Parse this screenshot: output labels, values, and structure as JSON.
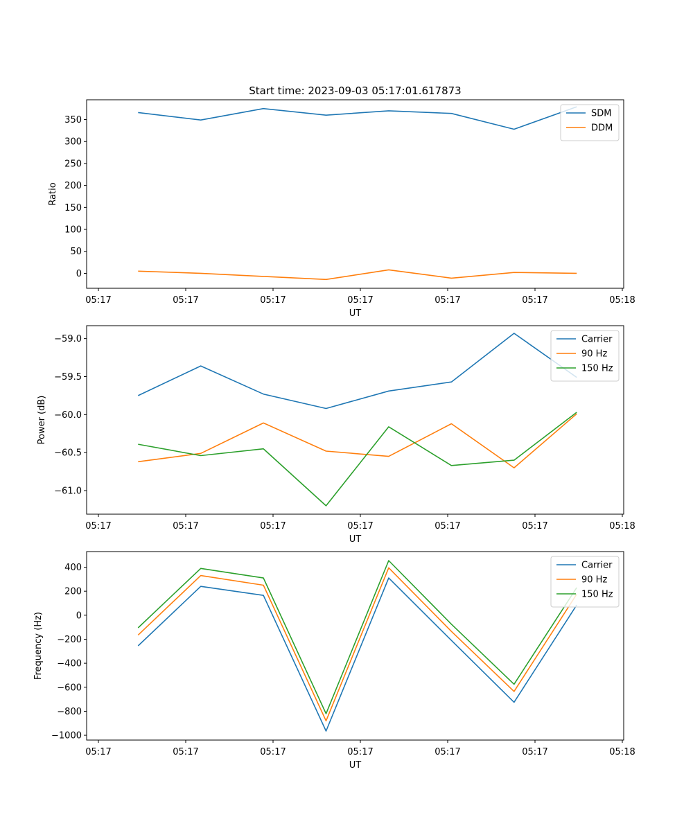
{
  "figure": {
    "title": "Start time: 2023-09-03 05:17:01.617873"
  },
  "colors": {
    "blue": "#1f77b4",
    "orange": "#ff7f0e",
    "green": "#2ca02c"
  },
  "chart_data": [
    {
      "type": "line",
      "title": "Start time: 2023-09-03 05:17:01.617873",
      "xlabel": "UT",
      "ylabel": "Ratio",
      "x_tick_labels": [
        "05:17",
        "05:17",
        "05:17",
        "05:17",
        "05:17",
        "05:17",
        "05:18"
      ],
      "xlim": [
        -0.12,
        4.68
      ],
      "ylim": [
        -34,
        395
      ],
      "y_ticks": [
        0,
        50,
        100,
        150,
        200,
        250,
        300,
        350
      ],
      "legend_position": "top-right",
      "x": [
        0.34,
        0.9,
        1.46,
        2.02,
        2.58,
        3.14,
        3.7,
        4.26
      ],
      "series": [
        {
          "name": "SDM",
          "color": "blue",
          "values": [
            366,
            349,
            375,
            360,
            370,
            364,
            328,
            379
          ]
        },
        {
          "name": "DDM",
          "color": "orange",
          "values": [
            5,
            0,
            -7,
            -14,
            8,
            -11,
            2,
            0
          ]
        }
      ]
    },
    {
      "type": "line",
      "title": "",
      "xlabel": "UT",
      "ylabel": "Power (dB)",
      "x_tick_labels": [
        "05:17",
        "05:17",
        "05:17",
        "05:17",
        "05:17",
        "05:17",
        "05:18"
      ],
      "xlim": [
        -0.12,
        4.68
      ],
      "ylim": [
        -61.31,
        -58.83
      ],
      "y_ticks": [
        -61.0,
        -60.5,
        -60.0,
        -59.5,
        -59.0
      ],
      "y_tick_labels": [
        "−61.0",
        "−60.5",
        "−60.0",
        "−59.5",
        "−59.0"
      ],
      "legend_position": "top-right",
      "x": [
        0.34,
        0.9,
        1.46,
        2.02,
        2.58,
        3.14,
        3.7,
        4.26
      ],
      "series": [
        {
          "name": "Carrier",
          "color": "blue",
          "values": [
            -59.75,
            -59.36,
            -59.73,
            -59.92,
            -59.69,
            -59.57,
            -58.93,
            -59.51
          ]
        },
        {
          "name": "90 Hz",
          "color": "orange",
          "values": [
            -60.62,
            -60.51,
            -60.11,
            -60.48,
            -60.55,
            -60.12,
            -60.7,
            -59.99
          ]
        },
        {
          "name": "150 Hz",
          "color": "green",
          "values": [
            -60.39,
            -60.54,
            -60.45,
            -61.2,
            -60.16,
            -60.67,
            -60.6,
            -59.97
          ]
        }
      ]
    },
    {
      "type": "line",
      "title": "",
      "xlabel": "UT",
      "ylabel": "Frequency (Hz)",
      "x_tick_labels": [
        "05:17",
        "05:17",
        "05:17",
        "05:17",
        "05:17",
        "05:17",
        "05:18"
      ],
      "xlim": [
        -0.12,
        4.68
      ],
      "ylim": [
        -1040,
        530
      ],
      "y_ticks": [
        -1000,
        -800,
        -600,
        -400,
        -200,
        0,
        200,
        400
      ],
      "y_tick_labels": [
        "−1000",
        "−800",
        "−600",
        "−400",
        "−200",
        "0",
        "200",
        "400"
      ],
      "legend_position": "top-right",
      "x": [
        0.34,
        0.9,
        1.46,
        2.02,
        2.58,
        3.14,
        3.7,
        4.26
      ],
      "series": [
        {
          "name": "Carrier",
          "color": "blue",
          "values": [
            -255,
            240,
            165,
            -965,
            310,
            -210,
            -725,
            85
          ]
        },
        {
          "name": "90 Hz",
          "color": "orange",
          "values": [
            -165,
            330,
            250,
            -880,
            395,
            -135,
            -635,
            175
          ]
        },
        {
          "name": "150 Hz",
          "color": "green",
          "values": [
            -105,
            390,
            310,
            -820,
            455,
            -75,
            -575,
            230
          ]
        }
      ]
    }
  ]
}
